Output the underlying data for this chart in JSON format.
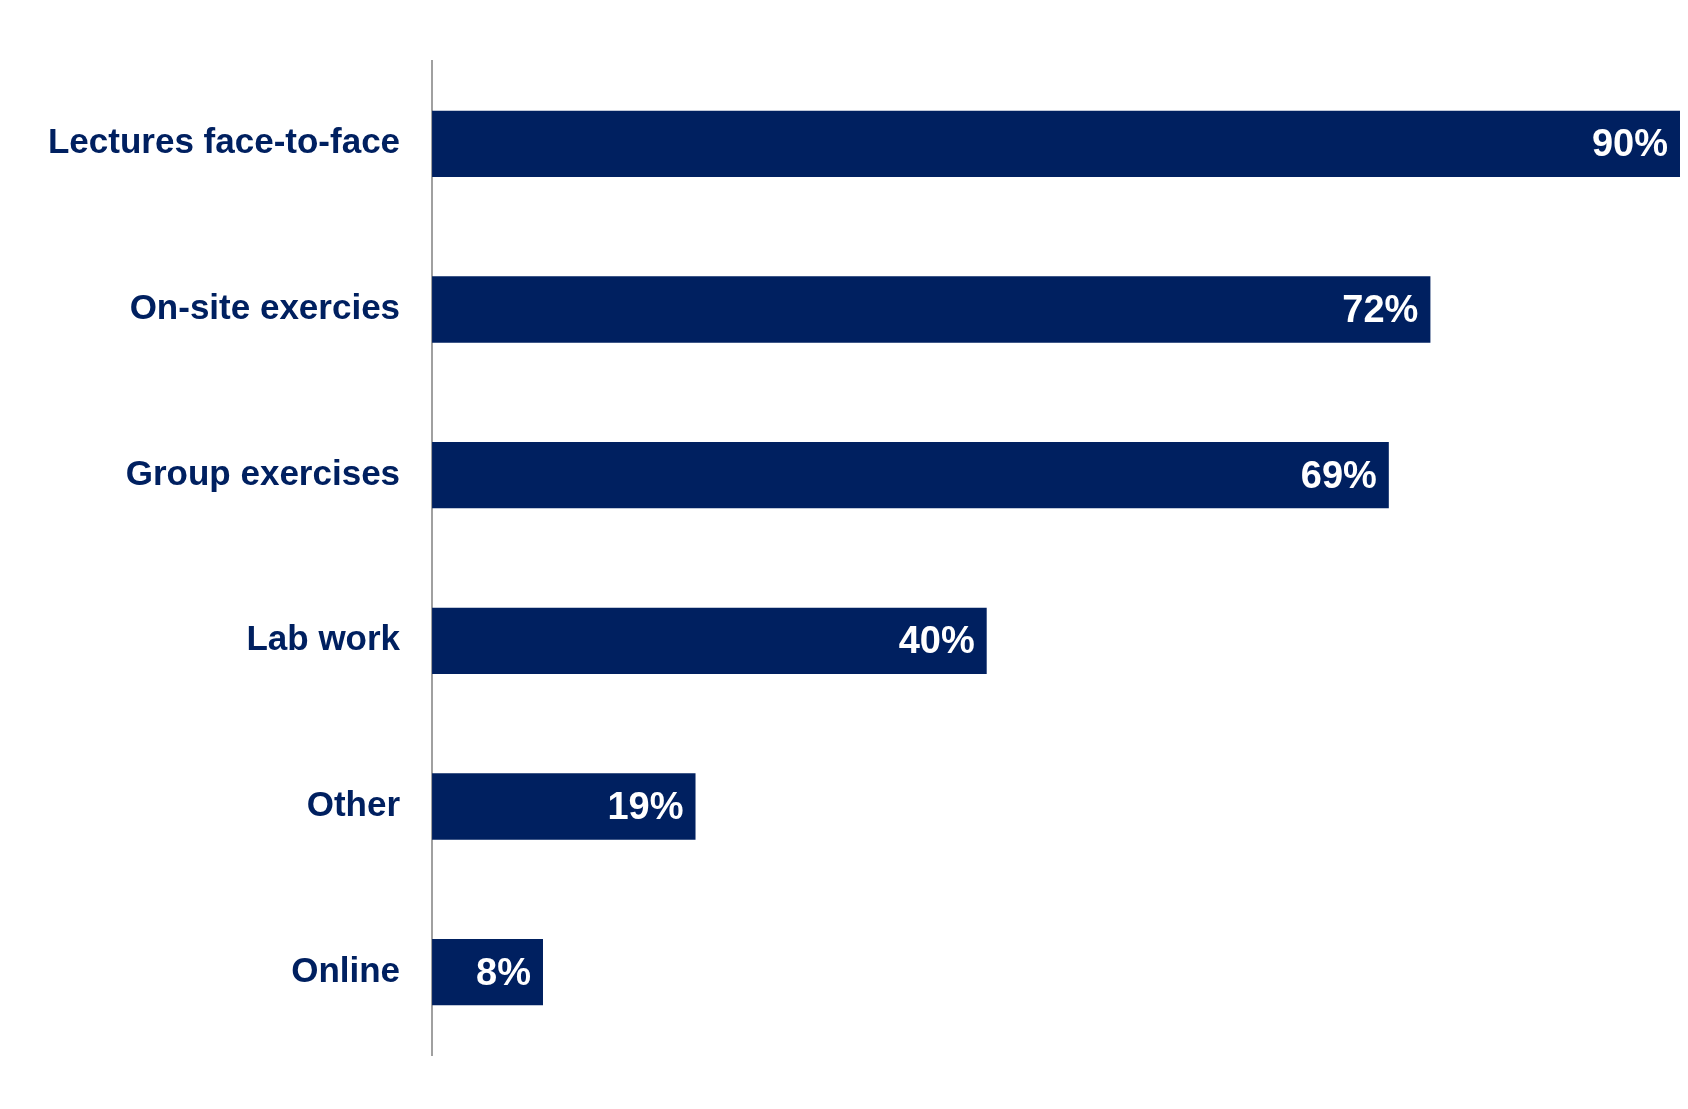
{
  "chart_data": {
    "type": "bar",
    "orientation": "horizontal",
    "categories": [
      "Lectures face-to-face",
      "On-site exercies",
      "Group exercises",
      "Lab work",
      "Other",
      "Online"
    ],
    "values": [
      90,
      72,
      69,
      40,
      19,
      8
    ],
    "value_labels": [
      "90%",
      "72%",
      "69%",
      "40%",
      "19%",
      "8%"
    ],
    "color": "#002060",
    "xlim": [
      0,
      90
    ],
    "tick_labels": "y"
  }
}
